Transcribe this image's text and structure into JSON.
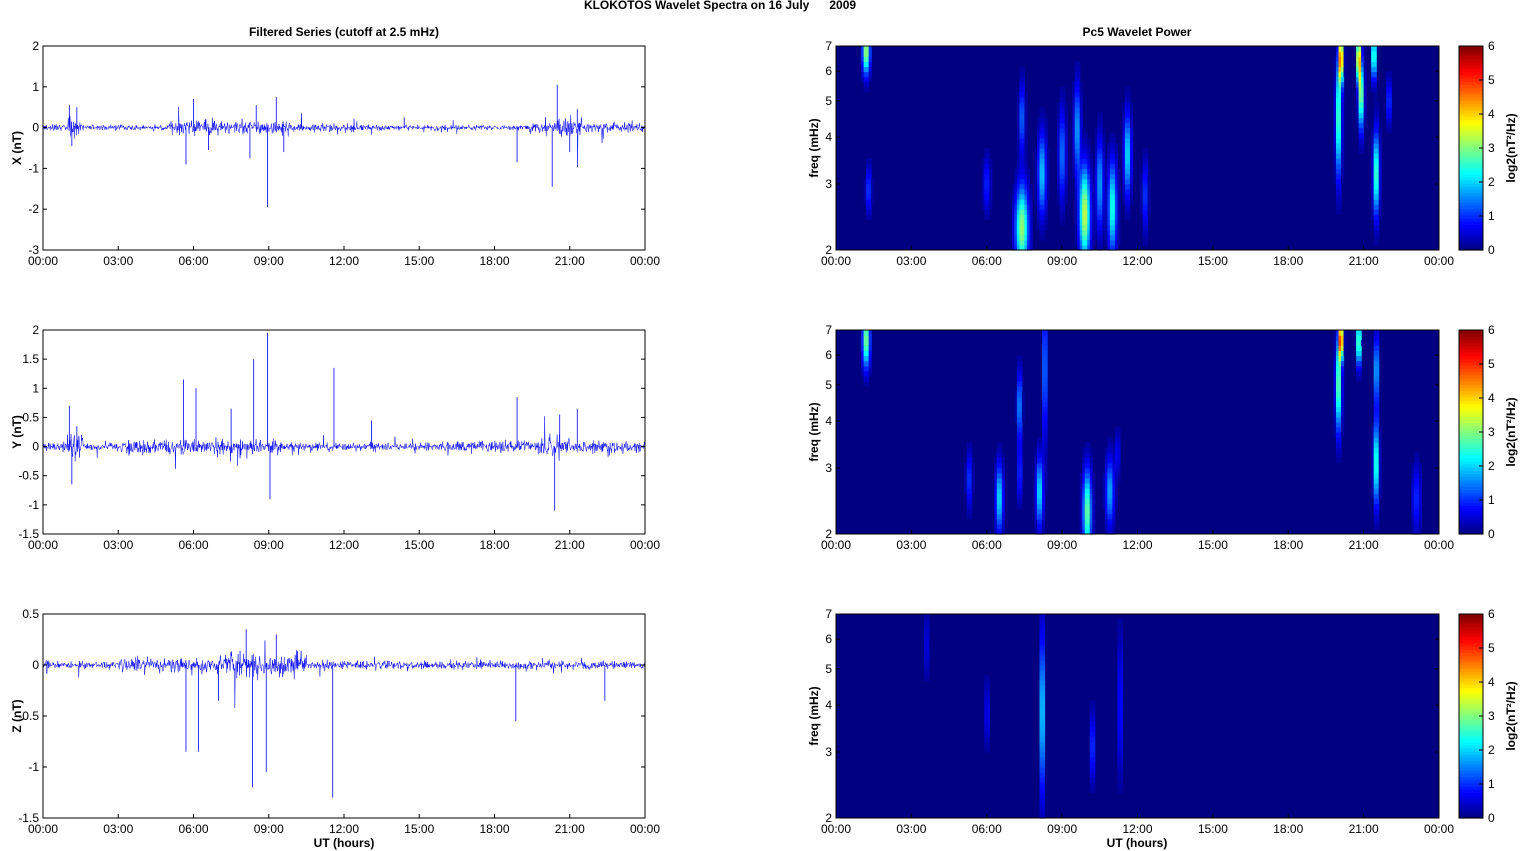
{
  "figure": {
    "title": "KLOKOTOS Wavelet Spectra on 16 July      2009",
    "left_title": "Filtered Series (cutoff at 2.5 mHz)",
    "right_title": "Pc5 Wavelet Power",
    "xlabel": "UT (hours)"
  },
  "chart_data": [
    {
      "type": "line",
      "component": "X",
      "ylabel": "X (nT)",
      "xlim": [
        0,
        24
      ],
      "ylim": [
        -3,
        2
      ],
      "xticks": [
        "00:00",
        "03:00",
        "06:00",
        "09:00",
        "12:00",
        "15:00",
        "18:00",
        "21:00",
        "00:00"
      ],
      "yticks": [
        "2",
        "1",
        "0",
        "-1",
        "-2",
        "-3"
      ],
      "series_color": "#0000ff",
      "noise": 0.05,
      "activity": [
        [
          0,
          1,
          0.06
        ],
        [
          1,
          1.5,
          0.18
        ],
        [
          5,
          7,
          0.14
        ],
        [
          7,
          9.8,
          0.12
        ],
        [
          9.8,
          13,
          0.07
        ],
        [
          13,
          19,
          0.05
        ],
        [
          19.5,
          20.5,
          0.1
        ],
        [
          20.5,
          21.5,
          0.2
        ],
        [
          21.5,
          24,
          0.08
        ]
      ],
      "spikes": [
        [
          1.05,
          0.55
        ],
        [
          1.15,
          -0.45
        ],
        [
          1.35,
          0.5
        ],
        [
          5.7,
          -0.9
        ],
        [
          6,
          0.7
        ],
        [
          6.6,
          -0.55
        ],
        [
          8.25,
          -0.75
        ],
        [
          8.5,
          0.55
        ],
        [
          8.95,
          -1.95
        ],
        [
          9.3,
          0.75
        ],
        [
          9.6,
          -0.6
        ],
        [
          10.3,
          0.35
        ],
        [
          14.4,
          0.25
        ],
        [
          18.9,
          -0.85
        ],
        [
          20.3,
          -1.45
        ],
        [
          20.5,
          1.05
        ],
        [
          21,
          -0.6
        ],
        [
          21.3,
          0.45
        ]
      ]
    },
    {
      "type": "line",
      "component": "Y",
      "ylabel": "Y (nT)",
      "xlim": [
        0,
        24
      ],
      "ylim": [
        -1.5,
        2
      ],
      "xticks": [
        "00:00",
        "03:00",
        "06:00",
        "09:00",
        "12:00",
        "15:00",
        "18:00",
        "21:00",
        "00:00"
      ],
      "yticks": [
        "2",
        "1.5",
        "1",
        "0.5",
        "0",
        "-0.5",
        "-1",
        "-1.5"
      ],
      "series_color": "#0000ff",
      "noise": 0.05,
      "activity": [
        [
          0,
          1,
          0.06
        ],
        [
          1,
          1.6,
          0.2
        ],
        [
          3,
          9.5,
          0.09
        ],
        [
          9.5,
          16,
          0.05
        ],
        [
          16,
          19.8,
          0.08
        ],
        [
          19.8,
          21,
          0.15
        ],
        [
          21,
          24,
          0.08
        ]
      ],
      "spikes": [
        [
          1.05,
          0.7
        ],
        [
          1.15,
          -0.65
        ],
        [
          1.35,
          0.35
        ],
        [
          5.6,
          1.15
        ],
        [
          6.1,
          1.0
        ],
        [
          7.5,
          0.65
        ],
        [
          8.4,
          1.5
        ],
        [
          8.95,
          1.95
        ],
        [
          9.05,
          -0.9
        ],
        [
          11.6,
          1.35
        ],
        [
          13.1,
          0.45
        ],
        [
          18.9,
          0.85
        ],
        [
          20.4,
          -1.1
        ],
        [
          20.6,
          0.55
        ],
        [
          21.3,
          0.65
        ]
      ]
    },
    {
      "type": "line",
      "component": "Z",
      "ylabel": "Z (nT)",
      "xlim": [
        0,
        24
      ],
      "ylim": [
        -1.5,
        0.5
      ],
      "xticks": [
        "00:00",
        "03:00",
        "06:00",
        "09:00",
        "12:00",
        "15:00",
        "18:00",
        "21:00",
        "00:00"
      ],
      "yticks": [
        "0.5",
        "0",
        "-0.5",
        "-1",
        "-1.5"
      ],
      "series_color": "#0000ff",
      "noise": 0.025,
      "activity": [
        [
          0,
          3,
          0.03
        ],
        [
          3,
          7,
          0.05
        ],
        [
          7,
          10.5,
          0.08
        ],
        [
          10.5,
          24,
          0.03
        ]
      ],
      "spikes": [
        [
          5.7,
          -0.85
        ],
        [
          6.2,
          -0.85
        ],
        [
          7,
          -0.35
        ],
        [
          8.1,
          0.35
        ],
        [
          8.35,
          -1.2
        ],
        [
          8.9,
          -1.05
        ],
        [
          9.3,
          0.3
        ],
        [
          11.55,
          -1.3
        ],
        [
          18.85,
          -0.55
        ],
        [
          22.4,
          -0.35
        ]
      ]
    },
    {
      "type": "heatmap",
      "component": "X",
      "ylabel": "freq (mHz)",
      "colorbar_label": "log2(nT²/Hz)",
      "yscale": "log",
      "xlim": [
        0,
        24
      ],
      "ylim": [
        2,
        7
      ],
      "clim": [
        0,
        6
      ],
      "xticks": [
        "00:00",
        "03:00",
        "06:00",
        "09:00",
        "12:00",
        "15:00",
        "18:00",
        "21:00",
        "00:00"
      ],
      "yticks": [
        "7",
        "6",
        "5",
        "4",
        "3",
        "2"
      ],
      "cticks": [
        "6",
        "5",
        "4",
        "3",
        "2",
        "1",
        "0"
      ],
      "blobs": [
        [
          1.2,
          6.8,
          0.1,
          0.1,
          3.4
        ],
        [
          1.3,
          2.9,
          0.08,
          0.1,
          1.2
        ],
        [
          6,
          3,
          0.1,
          0.12,
          1
        ],
        [
          7.4,
          2.3,
          0.18,
          0.18,
          3.2
        ],
        [
          7.4,
          4.5,
          0.08,
          0.15,
          1.5
        ],
        [
          8.2,
          3.2,
          0.12,
          0.18,
          2
        ],
        [
          9,
          3.6,
          0.1,
          0.2,
          1.5
        ],
        [
          9.6,
          4.2,
          0.09,
          0.2,
          1.8
        ],
        [
          9.9,
          2.5,
          0.15,
          0.2,
          3.5
        ],
        [
          10.5,
          3,
          0.1,
          0.2,
          1.8
        ],
        [
          11,
          2.6,
          0.12,
          0.2,
          2.5
        ],
        [
          11.6,
          3.6,
          0.1,
          0.18,
          2.2
        ],
        [
          12.3,
          2.8,
          0.08,
          0.15,
          1.2
        ],
        [
          20,
          4.5,
          0.08,
          0.25,
          3
        ],
        [
          20.1,
          6.5,
          0.06,
          0.1,
          5.2
        ],
        [
          20.8,
          6.5,
          0.05,
          0.1,
          5.2
        ],
        [
          20.9,
          5.2,
          0.07,
          0.15,
          3.5
        ],
        [
          21.5,
          3.2,
          0.08,
          0.18,
          3
        ],
        [
          21.4,
          6.6,
          0.06,
          0.1,
          3.2
        ],
        [
          22,
          5,
          0.05,
          0.1,
          1.5
        ]
      ]
    },
    {
      "type": "heatmap",
      "component": "Y",
      "ylabel": "freq (mHz)",
      "colorbar_label": "log2(nT²/Hz)",
      "yscale": "log",
      "xlim": [
        0,
        24
      ],
      "ylim": [
        2,
        7
      ],
      "clim": [
        0,
        6
      ],
      "xticks": [
        "00:00",
        "03:00",
        "06:00",
        "09:00",
        "12:00",
        "15:00",
        "18:00",
        "21:00",
        "00:00"
      ],
      "yticks": [
        "7",
        "6",
        "5",
        "4",
        "3",
        "2"
      ],
      "cticks": [
        "6",
        "5",
        "4",
        "3",
        "2",
        "1",
        "0"
      ],
      "blobs": [
        [
          1.2,
          6.6,
          0.1,
          0.12,
          3.2
        ],
        [
          5.3,
          2.8,
          0.08,
          0.12,
          1.2
        ],
        [
          6.5,
          2.5,
          0.1,
          0.15,
          2.2
        ],
        [
          7.3,
          4.4,
          0.07,
          0.15,
          1.8
        ],
        [
          7.3,
          2.9,
          0.06,
          0.12,
          1.2
        ],
        [
          8.1,
          2.6,
          0.1,
          0.15,
          2.2
        ],
        [
          8.3,
          5.5,
          0.05,
          0.3,
          2
        ],
        [
          10,
          2.3,
          0.12,
          0.18,
          3
        ],
        [
          10.9,
          2.6,
          0.12,
          0.15,
          1.8
        ],
        [
          11.2,
          3.3,
          0.06,
          0.1,
          0.8
        ],
        [
          20,
          5,
          0.08,
          0.2,
          3.2
        ],
        [
          20.1,
          6.6,
          0.06,
          0.08,
          5.5
        ],
        [
          20.8,
          6.5,
          0.06,
          0.1,
          3.5
        ],
        [
          21.5,
          3.1,
          0.07,
          0.18,
          3
        ],
        [
          21.5,
          5.5,
          0.05,
          0.15,
          2.5
        ],
        [
          23.1,
          2.5,
          0.12,
          0.15,
          1
        ]
      ]
    },
    {
      "type": "heatmap",
      "component": "Z",
      "ylabel": "freq (mHz)",
      "colorbar_label": "log2(nT²/Hz)",
      "yscale": "log",
      "xlim": [
        0,
        24
      ],
      "ylim": [
        2,
        7
      ],
      "clim": [
        0,
        6
      ],
      "xticks": [
        "00:00",
        "03:00",
        "06:00",
        "09:00",
        "12:00",
        "15:00",
        "18:00",
        "21:00",
        "00:00"
      ],
      "yticks": [
        "7",
        "6",
        "5",
        "4",
        "3",
        "2"
      ],
      "cticks": [
        "6",
        "5",
        "4",
        "3",
        "2",
        "1",
        "0"
      ],
      "blobs": [
        [
          3.6,
          5.8,
          0.05,
          0.15,
          0.8
        ],
        [
          6,
          3.8,
          0.06,
          0.15,
          0.8
        ],
        [
          8.2,
          3.8,
          0.06,
          0.35,
          2.5
        ],
        [
          10.2,
          3.1,
          0.07,
          0.15,
          1.2
        ],
        [
          11.3,
          4,
          0.05,
          0.3,
          1.2
        ]
      ]
    }
  ]
}
